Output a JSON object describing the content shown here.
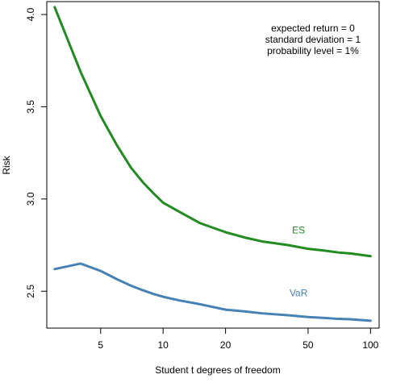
{
  "chart_data": {
    "type": "line",
    "title": "",
    "xlabel": "Student t degrees of freedom",
    "ylabel": "Risk",
    "x_scale": "log",
    "xlim": [
      2.75,
      110
    ],
    "ylim": [
      2.3,
      4.07
    ],
    "x_ticks": [
      5,
      10,
      20,
      50,
      100
    ],
    "x_tick_labels": [
      "5",
      "10",
      "20",
      "50",
      "100"
    ],
    "y_ticks": [
      2.5,
      3.0,
      3.5,
      4.0
    ],
    "y_tick_labels": [
      "2.5",
      "3.0",
      "3.5",
      "4.0"
    ],
    "grid": false,
    "annotations": [
      "expected return = 0",
      "standard deviation = 1",
      "probability level = 1%"
    ],
    "series": [
      {
        "name": "ES",
        "color": "#228B22",
        "label_at": {
          "x": 45,
          "y": 2.83
        },
        "x": [
          3,
          4,
          5,
          6,
          7,
          8,
          9,
          10,
          12,
          15,
          20,
          25,
          30,
          40,
          50,
          60,
          70,
          80,
          100
        ],
        "values": [
          4.04,
          3.69,
          3.45,
          3.29,
          3.17,
          3.09,
          3.03,
          2.98,
          2.93,
          2.87,
          2.82,
          2.79,
          2.77,
          2.75,
          2.73,
          2.72,
          2.71,
          2.705,
          2.69
        ]
      },
      {
        "name": "VaR",
        "color": "#4682B4",
        "label_at": {
          "x": 45,
          "y": 2.49
        },
        "x": [
          3,
          4,
          5,
          6,
          7,
          8,
          9,
          10,
          12,
          15,
          20,
          25,
          30,
          40,
          50,
          60,
          70,
          80,
          100
        ],
        "values": [
          2.62,
          2.65,
          2.61,
          2.565,
          2.53,
          2.505,
          2.485,
          2.47,
          2.45,
          2.43,
          2.4,
          2.39,
          2.38,
          2.37,
          2.36,
          2.355,
          2.35,
          2.348,
          2.34
        ]
      }
    ]
  }
}
